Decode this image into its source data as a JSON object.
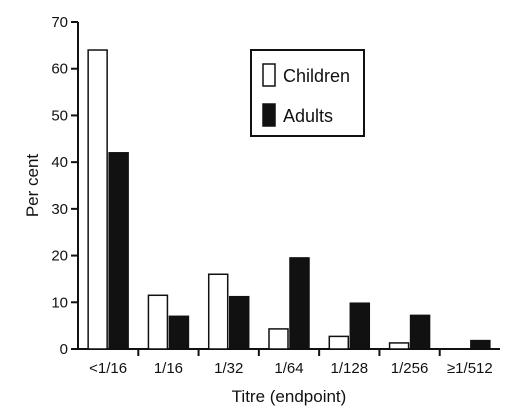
{
  "chart_data": {
    "type": "bar",
    "categories": [
      "<1/16",
      "1/16",
      "1/32",
      "1/64",
      "1/128",
      "1/256",
      "≥1/512"
    ],
    "series": [
      {
        "name": "Children",
        "values": [
          64,
          11.5,
          16,
          4.3,
          2.7,
          1.3,
          0
        ],
        "color": "#ffffff"
      },
      {
        "name": "Adults",
        "values": [
          42,
          7,
          11.2,
          19.5,
          9.8,
          7.2,
          1.8
        ],
        "color": "#111111"
      }
    ],
    "xlabel": "Titre (endpoint)",
    "ylabel": "Per cent",
    "ylim": [
      0,
      70
    ],
    "yticks": [
      0,
      10,
      20,
      30,
      40,
      50,
      60,
      70
    ],
    "ytick_labels": [
      "0",
      "10",
      "20",
      "30",
      "40",
      "50",
      "60",
      "70"
    ],
    "grid": false,
    "legend_position": "top-right"
  }
}
